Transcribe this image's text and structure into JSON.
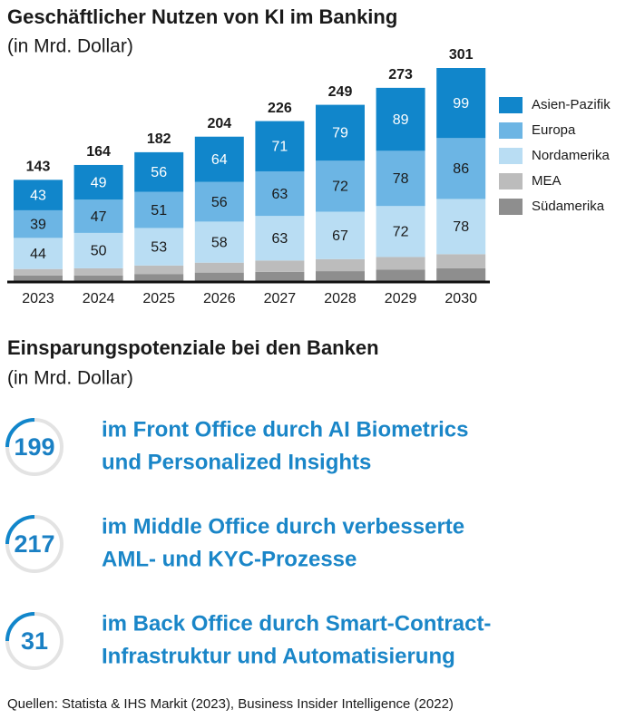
{
  "chart_data": {
    "type": "stacked_bar",
    "title": "Geschäftlicher Nutzen von KI im Banking",
    "subtitle": "(in Mrd. Dollar)",
    "categories": [
      "2023",
      "2024",
      "2025",
      "2026",
      "2027",
      "2028",
      "2029",
      "2030"
    ],
    "totals": [
      143,
      164,
      182,
      204,
      226,
      249,
      273,
      301
    ],
    "series": [
      {
        "name": "Asien-Pazifik",
        "color": "#1186cb",
        "label_color": "#ffffff",
        "labels": true,
        "values": [
          43,
          49,
          56,
          64,
          71,
          79,
          89,
          99
        ]
      },
      {
        "name": "Europa",
        "color": "#6cb5e4",
        "label_color": "#1a1a1a",
        "labels": true,
        "values": [
          39,
          47,
          51,
          56,
          63,
          72,
          78,
          86
        ]
      },
      {
        "name": "Nordamerika",
        "color": "#b9ddf3",
        "label_color": "#1a1a1a",
        "labels": true,
        "values": [
          44,
          50,
          53,
          58,
          63,
          67,
          72,
          78
        ]
      },
      {
        "name": "MEA",
        "color": "#bcbcbc",
        "label_color": "#1a1a1a",
        "labels": false,
        "values": [
          9,
          10,
          12,
          14,
          16,
          17,
          18,
          20
        ]
      },
      {
        "name": "Südamerika",
        "color": "#8e8e8e",
        "label_color": "#1a1a1a",
        "labels": false,
        "values": [
          8,
          8,
          10,
          12,
          13,
          14,
          16,
          18
        ]
      }
    ],
    "ylim": [
      0,
      301
    ]
  },
  "savings": {
    "title": "Einsparungspotenziale bei den Banken",
    "subtitle": "(in Mrd. Dollar)",
    "items": [
      {
        "value": 199,
        "lines": [
          "im Front Office durch AI Biometrics",
          "und Personalized Insights"
        ]
      },
      {
        "value": 217,
        "lines": [
          "im Middle Office durch verbesserte",
          "AML- und KYC-Prozesse"
        ]
      },
      {
        "value": 31,
        "lines": [
          "im Back Office durch Smart-Contract-",
          "Infrastruktur und Automatisierung"
        ]
      }
    ]
  },
  "source": "Quellen: Statista & IHS Markit (2023), Business Insider Intelligence (2022)"
}
